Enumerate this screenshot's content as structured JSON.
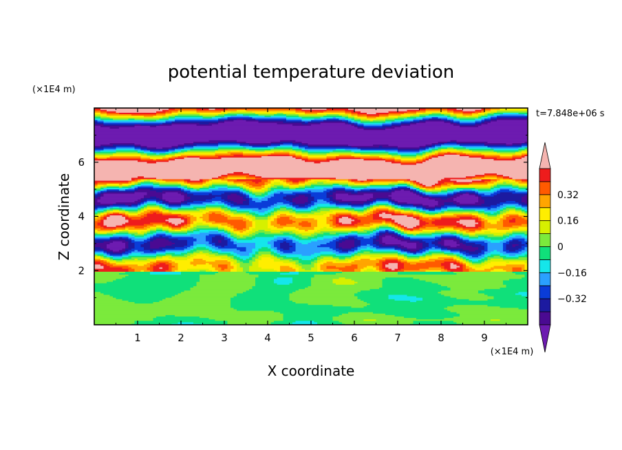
{
  "chart_data": {
    "type": "heatmap",
    "title": "potential temperature deviation",
    "time_label": "t=7.848e+06 s",
    "xlabel": "X coordinate",
    "ylabel": "Z coordinate",
    "x_unit": "(×1E4 m)",
    "y_unit": "(×1E4 m)",
    "xlim": [
      0,
      10
    ],
    "ylim": [
      0,
      8
    ],
    "x_ticks": [
      {
        "value": 1,
        "label": "1"
      },
      {
        "value": 2,
        "label": "2"
      },
      {
        "value": 3,
        "label": "3"
      },
      {
        "value": 4,
        "label": "4"
      },
      {
        "value": 5,
        "label": "5"
      },
      {
        "value": 6,
        "label": "6"
      },
      {
        "value": 7,
        "label": "7"
      },
      {
        "value": 8,
        "label": "8"
      },
      {
        "value": 9,
        "label": "9"
      }
    ],
    "y_ticks": [
      {
        "value": 2,
        "label": "2"
      },
      {
        "value": 4,
        "label": "4"
      },
      {
        "value": 6,
        "label": "6"
      }
    ],
    "colorbar": {
      "levels": [
        -0.48,
        -0.4,
        -0.32,
        -0.24,
        -0.16,
        -0.08,
        0,
        0.08,
        0.16,
        0.24,
        0.32,
        0.4,
        0.48
      ],
      "colors": [
        "#4a0a92",
        "#1c1aa0",
        "#0a3cd8",
        "#2aa0ff",
        "#15e6ea",
        "#10e07a",
        "#7bea3c",
        "#d6f000",
        "#ffee00",
        "#ffa500",
        "#ff5a00",
        "#ee1c1c"
      ],
      "under_color": "#6d1bb0",
      "over_color": "#f5b4b0",
      "labels": [
        {
          "value": 0.32,
          "label": "0.32"
        },
        {
          "value": 0.16,
          "label": "0.16"
        },
        {
          "value": 0,
          "label": "0"
        },
        {
          "value": -0.16,
          "label": "−0.16"
        },
        {
          "value": -0.32,
          "label": "−0.32"
        }
      ]
    },
    "layers": [
      {
        "z": [
          0,
          1.95
        ],
        "pattern": "green-mottled"
      },
      {
        "z": [
          1.95,
          5.4
        ],
        "pattern": "multicolor-bands"
      },
      {
        "z": [
          5.4,
          8
        ],
        "pattern": "pink-purple-bands"
      }
    ]
  }
}
